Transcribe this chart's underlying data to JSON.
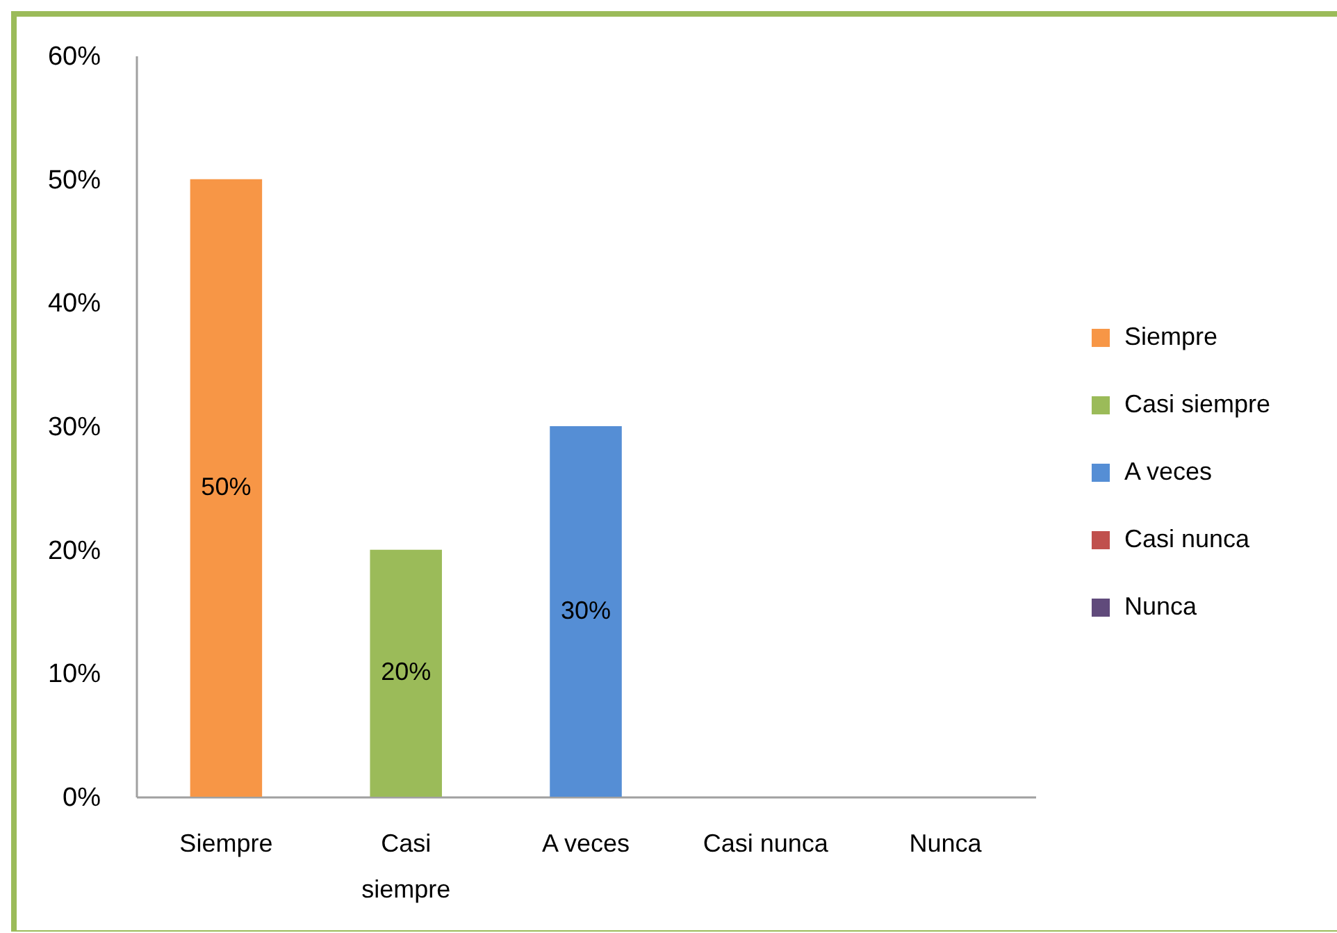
{
  "chart_data": {
    "type": "bar",
    "categories": [
      "Siempre",
      "Casi siempre",
      "A veces",
      "Casi nunca",
      "Nunca"
    ],
    "stacked": true,
    "series": [
      {
        "name": "Siempre",
        "color": "#f79646",
        "values": [
          50,
          null,
          null,
          null,
          null
        ],
        "value_labels": [
          "50%",
          null,
          null,
          null,
          null
        ]
      },
      {
        "name": "Casi siempre",
        "color": "#9bbb59",
        "values": [
          null,
          20,
          null,
          null,
          null
        ],
        "value_labels": [
          null,
          "20%",
          null,
          null,
          null
        ]
      },
      {
        "name": "A veces",
        "color": "#558ed5",
        "values": [
          null,
          null,
          30,
          null,
          null
        ],
        "value_labels": [
          null,
          null,
          "30%",
          null,
          null
        ]
      },
      {
        "name": "Casi nunca",
        "color": "#c0504d",
        "values": [
          null,
          null,
          null,
          0,
          null
        ]
      },
      {
        "name": "Nunca",
        "color": "#604a7b",
        "values": [
          null,
          null,
          null,
          null,
          0
        ]
      }
    ],
    "ylim": [
      0,
      60
    ],
    "yticks": [
      {
        "value": 0,
        "label": "0%"
      },
      {
        "value": 10,
        "label": "10%"
      },
      {
        "value": 20,
        "label": "20%"
      },
      {
        "value": 30,
        "label": "30%"
      },
      {
        "value": 40,
        "label": "40%"
      },
      {
        "value": 50,
        "label": "50%"
      },
      {
        "value": 60,
        "label": "60%"
      }
    ],
    "grid": false,
    "legend": "right"
  }
}
